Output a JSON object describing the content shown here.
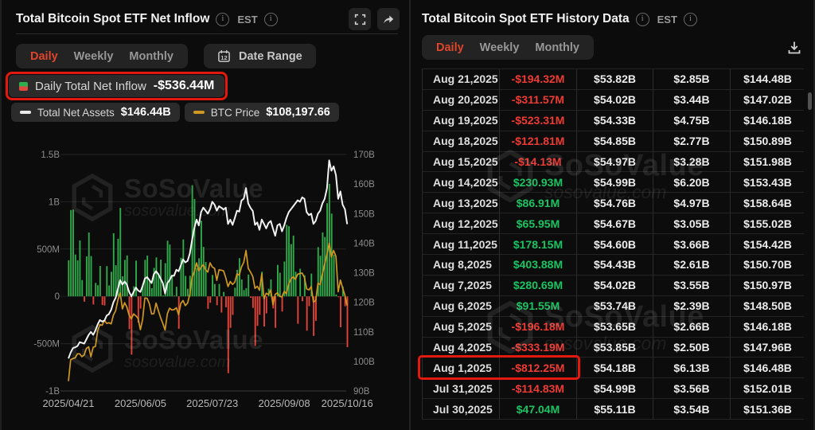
{
  "watermark": {
    "brand": "SoSoValue",
    "domain": "sosovalue.com"
  },
  "colors": {
    "accent_red": "#e0452b",
    "highlight_border": "#e1190e",
    "bar_positive": "#2fa94a",
    "bar_negative": "#e0433a",
    "line_assets": "#f2f2f2",
    "line_btc": "#d0981f",
    "text_positive": "#19c463",
    "text_negative": "#ee3b33",
    "panel_bg": "#0c0c0c"
  },
  "left_panel": {
    "title": "Total Bitcoin Spot ETF Net Inflow",
    "est_label": "EST",
    "tabs": [
      "Daily",
      "Weekly",
      "Monthly"
    ],
    "active_tab": "Daily",
    "date_range_label": "Date Range",
    "legend": {
      "daily_label": "Daily Total Net Inflow",
      "daily_value": "-$536.44M",
      "assets_label": "Total Net Assets",
      "assets_value": "$146.44B",
      "btc_label": "BTC Price",
      "btc_value": "$108,197.66"
    }
  },
  "right_panel": {
    "title": "Total Bitcoin Spot ETF History Data",
    "est_label": "EST",
    "tabs": [
      "Daily",
      "Weekly",
      "Monthly"
    ],
    "active_tab": "Daily",
    "table": {
      "highlight_row": "Aug 1,2025",
      "rows": [
        [
          "Aug 21,2025",
          "-$194.32M",
          "$53.82B",
          "$2.85B",
          "$144.48B"
        ],
        [
          "Aug 20,2025",
          "-$311.57M",
          "$54.02B",
          "$3.44B",
          "$147.02B"
        ],
        [
          "Aug 19,2025",
          "-$523.31M",
          "$54.33B",
          "$4.75B",
          "$146.18B"
        ],
        [
          "Aug 18,2025",
          "-$121.81M",
          "$54.85B",
          "$2.77B",
          "$150.89B"
        ],
        [
          "Aug 15,2025",
          "-$14.13M",
          "$54.97B",
          "$3.28B",
          "$151.98B"
        ],
        [
          "Aug 14,2025",
          "$230.93M",
          "$54.99B",
          "$6.20B",
          "$153.43B"
        ],
        [
          "Aug 13,2025",
          "$86.91M",
          "$54.76B",
          "$4.97B",
          "$158.64B"
        ],
        [
          "Aug 12,2025",
          "$65.95M",
          "$54.67B",
          "$3.05B",
          "$155.02B"
        ],
        [
          "Aug 11,2025",
          "$178.15M",
          "$54.60B",
          "$3.66B",
          "$154.42B"
        ],
        [
          "Aug 8,2025",
          "$403.88M",
          "$54.43B",
          "$2.61B",
          "$150.70B"
        ],
        [
          "Aug 7,2025",
          "$280.69M",
          "$54.02B",
          "$3.55B",
          "$150.97B"
        ],
        [
          "Aug 6,2025",
          "$91.55M",
          "$53.74B",
          "$2.39B",
          "$148.50B"
        ],
        [
          "Aug 5,2025",
          "-$196.18M",
          "$53.65B",
          "$2.66B",
          "$146.18B"
        ],
        [
          "Aug 4,2025",
          "-$333.19M",
          "$53.85B",
          "$2.50B",
          "$147.96B"
        ],
        [
          "Aug 1,2025",
          "-$812.25M",
          "$54.18B",
          "$6.13B",
          "$146.48B"
        ],
        [
          "Jul 31,2025",
          "-$114.83M",
          "$54.99B",
          "$3.56B",
          "$152.01B"
        ],
        [
          "Jul 30,2025",
          "$47.04M",
          "$55.11B",
          "$3.54B",
          "$151.36B"
        ]
      ]
    }
  },
  "chart_data": {
    "type": "bar",
    "title": "Total Bitcoin Spot ETF Net Inflow",
    "left_axis": {
      "labels": [
        "1.5B",
        "1B",
        "500M",
        "0",
        "-500M",
        "-1B"
      ],
      "values_m": [
        1500,
        1000,
        500,
        0,
        -500,
        -1000
      ]
    },
    "right_axis": {
      "labels": [
        "170B",
        "160B",
        "150B",
        "140B",
        "130B",
        "120B",
        "110B",
        "100B",
        "90B"
      ],
      "values_b": [
        170,
        160,
        150,
        140,
        130,
        120,
        110,
        100,
        90
      ]
    },
    "x_tick_labels": [
      "2025/04/21",
      "2025/06/05",
      "2025/07/23",
      "2025/09/08",
      "2025/10/16"
    ],
    "x_tick_indices": [
      0,
      32,
      64,
      96,
      124
    ],
    "dates": [
      "2025/04/21",
      "2025/04/22",
      "2025/04/23",
      "2025/04/24",
      "2025/04/25",
      "2025/04/28",
      "2025/04/29",
      "2025/04/30",
      "2025/05/01",
      "2025/05/02",
      "2025/05/05",
      "2025/05/06",
      "2025/05/07",
      "2025/05/08",
      "2025/05/09",
      "2025/05/12",
      "2025/05/13",
      "2025/05/14",
      "2025/05/15",
      "2025/05/16",
      "2025/05/19",
      "2025/05/20",
      "2025/05/21",
      "2025/05/22",
      "2025/05/23",
      "2025/05/27",
      "2025/05/28",
      "2025/05/29",
      "2025/05/30",
      "2025/06/02",
      "2025/06/03",
      "2025/06/04",
      "2025/06/05",
      "2025/06/06",
      "2025/06/09",
      "2025/06/10",
      "2025/06/11",
      "2025/06/12",
      "2025/06/13",
      "2025/06/16",
      "2025/06/17",
      "2025/06/18",
      "2025/06/20",
      "2025/06/23",
      "2025/06/24",
      "2025/06/25",
      "2025/06/26",
      "2025/06/27",
      "2025/06/30",
      "2025/07/01",
      "2025/07/02",
      "2025/07/03",
      "2025/07/07",
      "2025/07/08",
      "2025/07/09",
      "2025/07/10",
      "2025/07/11",
      "2025/07/14",
      "2025/07/15",
      "2025/07/16",
      "2025/07/17",
      "2025/07/18",
      "2025/07/21",
      "2025/07/22",
      "2025/07/23",
      "2025/07/24",
      "2025/07/25",
      "2025/07/28",
      "2025/07/29",
      "2025/07/30",
      "2025/07/31",
      "2025/08/01",
      "2025/08/04",
      "2025/08/05",
      "2025/08/06",
      "2025/08/07",
      "2025/08/08",
      "2025/08/11",
      "2025/08/12",
      "2025/08/13",
      "2025/08/14",
      "2025/08/15",
      "2025/08/18",
      "2025/08/19",
      "2025/08/20",
      "2025/08/21",
      "2025/08/22",
      "2025/08/25",
      "2025/08/26",
      "2025/08/27",
      "2025/08/28",
      "2025/08/29",
      "2025/09/02",
      "2025/09/03",
      "2025/09/04",
      "2025/09/05",
      "2025/09/08",
      "2025/09/09",
      "2025/09/10",
      "2025/09/11",
      "2025/09/12",
      "2025/09/15",
      "2025/09/16",
      "2025/09/17",
      "2025/09/18",
      "2025/09/19",
      "2025/09/22",
      "2025/09/23",
      "2025/09/24",
      "2025/09/25",
      "2025/09/26",
      "2025/09/29",
      "2025/09/30",
      "2025/10/01",
      "2025/10/02",
      "2025/10/03",
      "2025/10/06",
      "2025/10/07",
      "2025/10/08",
      "2025/10/09",
      "2025/10/10",
      "2025/10/13",
      "2025/10/14",
      "2025/10/15",
      "2025/10/16"
    ],
    "inflows_m": [
      381.3,
      912.7,
      916.9,
      442.0,
      380.0,
      591.2,
      173.0,
      -56.2,
      422.5,
      674.9,
      425.5,
      -85.7,
      142.3,
      117.4,
      321.4,
      -91.4,
      -96.1,
      319.6,
      114.9,
      260.3,
      667.4,
      329.2,
      609.0,
      934.8,
      211.7,
      385.0,
      432.7,
      -346.8,
      -616.1,
      105.9,
      378.0,
      -278.4,
      -128.8,
      130.2,
      386.3,
      431.2,
      164.6,
      86.3,
      301.7,
      412.2,
      216.3,
      388.3,
      6.4,
      350.8,
      588.6,
      547.7,
      226.7,
      2.2,
      102.1,
      -342.2,
      407.8,
      601.8,
      216.6,
      80.1,
      218.0,
      1175.7,
      1030.0,
      297.4,
      402.9,
      799.4,
      522.6,
      363.5,
      -131.4,
      -67.9,
      226.0,
      130.7,
      -93.2,
      130.9,
      -171.1,
      47.0,
      -114.8,
      -812.3,
      -333.2,
      -196.2,
      91.6,
      280.7,
      403.9,
      178.2,
      66.0,
      86.9,
      230.9,
      -14.1,
      -121.8,
      -523.3,
      -311.6,
      -194.3,
      260.9,
      -318.1,
      -178.9,
      81.1,
      179.0,
      -126.6,
      -332.7,
      332.7,
      250.0,
      -160.0,
      368.2,
      757.0,
      741.5,
      552.8,
      642.4,
      260.0,
      -290.0,
      292.0,
      -51.0,
      222.9,
      -363.0,
      -103.0,
      241.0,
      -418.0,
      -258.0,
      521.0,
      429.0,
      676.0,
      627.2,
      985.0,
      1190.0,
      875.0,
      440.0,
      20.0,
      -4.5,
      -326.0,
      102.6,
      -104.1,
      -536.44
    ],
    "net_assets_b": [
      101.0,
      103.0,
      104.5,
      104.8,
      105.2,
      106.5,
      106.3,
      106.0,
      107.5,
      109.0,
      110.0,
      109.0,
      110.5,
      112.5,
      114.0,
      113.5,
      113.8,
      115.5,
      116.0,
      117.5,
      120.0,
      121.5,
      124.5,
      127.5,
      126.0,
      127.0,
      126.0,
      123.5,
      122.0,
      123.5,
      125.0,
      124.0,
      123.5,
      125.5,
      128.0,
      128.5,
      127.5,
      126.5,
      129.5,
      130.5,
      129.5,
      128.0,
      126.5,
      123.0,
      126.5,
      127.5,
      129.0,
      129.0,
      131.0,
      130.5,
      132.5,
      134.5,
      133.5,
      134.0,
      136.5,
      141.0,
      145.0,
      148.0,
      146.0,
      150.5,
      152.0,
      151.0,
      150.0,
      151.5,
      154.0,
      153.0,
      151.0,
      152.5,
      152.0,
      151.36,
      152.01,
      146.48,
      147.96,
      146.18,
      148.5,
      150.97,
      150.7,
      154.42,
      155.02,
      158.64,
      153.43,
      151.98,
      150.89,
      146.18,
      147.02,
      144.48,
      148.0,
      146.5,
      145.0,
      146.8,
      147.5,
      144.9,
      142.5,
      146.0,
      146.5,
      144.0,
      146.0,
      148.5,
      150.5,
      151.5,
      152.5,
      153.5,
      154.5,
      154.0,
      155.5,
      155.0,
      150.5,
      149.5,
      150.0,
      146.5,
      147.5,
      150.0,
      151.0,
      153.5,
      155.0,
      158.5,
      168.0,
      164.5,
      166.0,
      163.0,
      155.0,
      157.5,
      153.0,
      151.5,
      146.44
    ],
    "btc_price_k": [
      87.5,
      93.4,
      93.7,
      93.9,
      95.0,
      95.0,
      94.2,
      94.7,
      96.5,
      96.9,
      94.2,
      96.8,
      97.0,
      101.3,
      103.0,
      102.8,
      104.2,
      103.3,
      103.5,
      103.2,
      105.6,
      106.8,
      109.7,
      111.7,
      107.3,
      109.0,
      107.8,
      105.6,
      104.6,
      105.9,
      105.4,
      104.7,
      101.6,
      104.4,
      110.3,
      110.2,
      108.7,
      105.9,
      106.0,
      108.9,
      106.8,
      104.9,
      103.3,
      101.5,
      106.0,
      107.5,
      107.0,
      107.1,
      107.6,
      105.7,
      108.8,
      109.6,
      108.2,
      108.9,
      111.3,
      115.9,
      117.5,
      119.9,
      117.7,
      118.7,
      119.4,
      118.0,
      117.4,
      119.9,
      118.8,
      118.4,
      115.1,
      118.0,
      117.9,
      117.7,
      115.8,
      113.4,
      114.8,
      114.0,
      114.6,
      116.9,
      116.5,
      118.8,
      120.1,
      123.3,
      118.4,
      117.4,
      116.2,
      112.9,
      113.5,
      112.4,
      116.9,
      110.1,
      111.6,
      111.2,
      112.5,
      108.4,
      111.3,
      111.7,
      110.7,
      110.6,
      112.1,
      111.5,
      114.1,
      115.5,
      116.1,
      115.4,
      116.8,
      117.0,
      117.1,
      115.9,
      112.8,
      112.5,
      113.4,
      109.2,
      109.5,
      114.3,
      114.0,
      116.9,
      119.5,
      122.2,
      125.3,
      121.5,
      123.3,
      121.7,
      112.0,
      115.2,
      113.0,
      111.0,
      108.2
    ]
  }
}
